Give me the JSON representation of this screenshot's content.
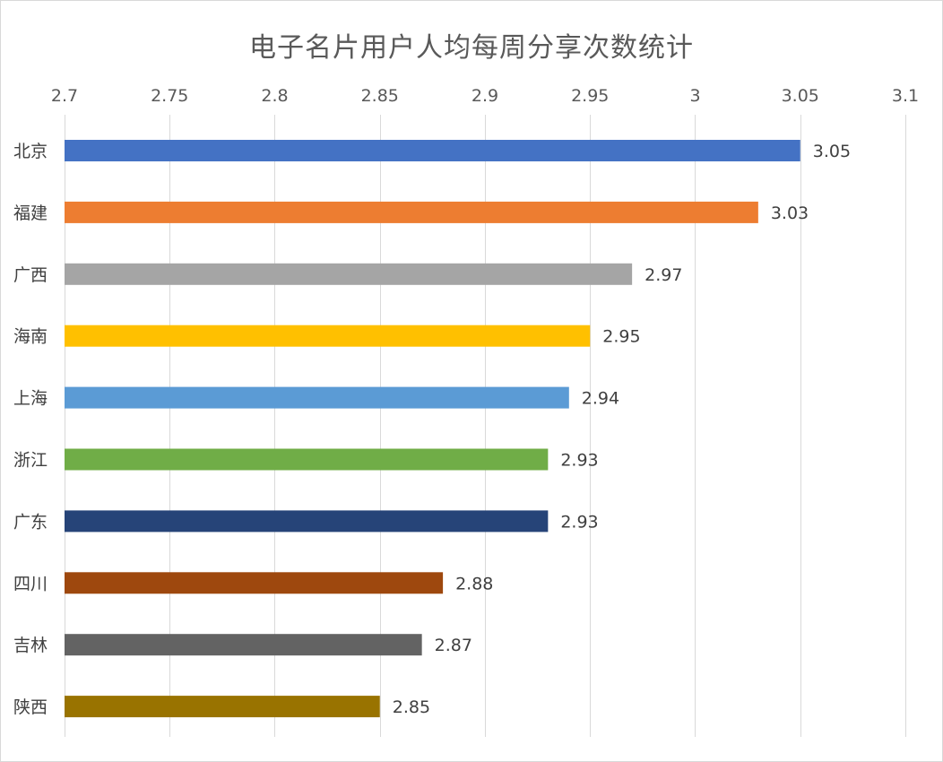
{
  "chart_data": {
    "type": "bar",
    "orientation": "horizontal",
    "title": "电子名片用户人均每周分享次数统计",
    "xlabel": "",
    "ylabel": "",
    "xlim": [
      2.7,
      3.1
    ],
    "ticks": [
      "2.7",
      "2.75",
      "2.8",
      "2.85",
      "2.9",
      "2.95",
      "3",
      "3.05",
      "3.1"
    ],
    "tick_values": [
      2.7,
      2.75,
      2.8,
      2.85,
      2.9,
      2.95,
      3.0,
      3.05,
      3.1
    ],
    "axis_position": "top",
    "grid": true,
    "legend": "none",
    "categories": [
      "北京",
      "福建",
      "广西",
      "海南",
      "上海",
      "浙江",
      "广东",
      "四川",
      "吉林",
      "陕西"
    ],
    "values": [
      3.05,
      3.03,
      2.97,
      2.95,
      2.94,
      2.93,
      2.93,
      2.88,
      2.87,
      2.85
    ],
    "value_labels": [
      "3.05",
      "3.03",
      "2.97",
      "2.95",
      "2.94",
      "2.93",
      "2.93",
      "2.88",
      "2.87",
      "2.85"
    ],
    "colors": [
      "#4472C4",
      "#ED7D31",
      "#A5A5A5",
      "#FFC000",
      "#5B9BD5",
      "#70AD47",
      "#264478",
      "#9E480E",
      "#636363",
      "#997300"
    ]
  }
}
